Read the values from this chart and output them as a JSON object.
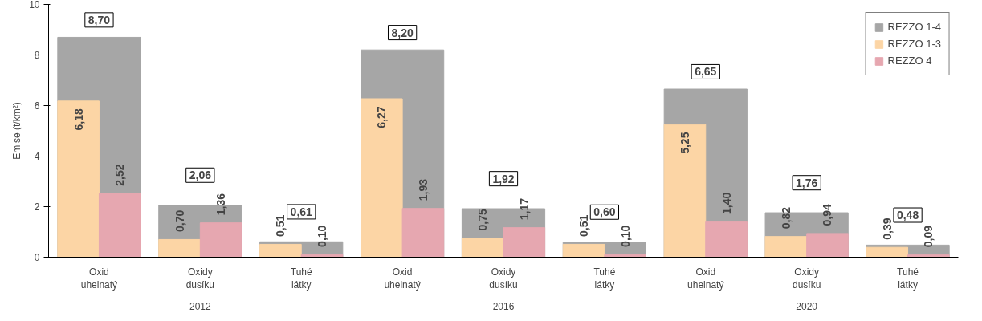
{
  "chart_data": {
    "type": "bar",
    "ylabel": "Emise (t/km²)",
    "categories": [
      "Oxid\nuhelnatý",
      "Oxidy\ndusíku",
      "Tuhé\nlátky",
      "Oxid\nuhelnatý",
      "Oxidy\ndusíku",
      "Tuhé\nlátky",
      "Oxid\nuhelnatý",
      "Oxidy\ndusíku",
      "Tuhé\nlátky"
    ],
    "series": [
      {
        "name": "REZZO 1-4",
        "color": "#a6a6a6",
        "values": [
          8.7,
          2.06,
          0.61,
          8.2,
          1.92,
          0.6,
          6.65,
          1.76,
          0.48
        ],
        "value_labels": [
          "8,70",
          "2,06",
          "0,61",
          "8,20",
          "1,92",
          "0,60",
          "6,65",
          "1,76",
          "0,48"
        ]
      },
      {
        "name": "REZZO 1-3",
        "color": "#fcd5a5",
        "values": [
          6.18,
          0.7,
          0.51,
          6.27,
          0.75,
          0.51,
          5.25,
          0.82,
          0.39
        ],
        "value_labels": [
          "6,18",
          "0,70",
          "0,51",
          "6,27",
          "0,75",
          "0,51",
          "5,25",
          "0,82",
          "0,39"
        ]
      },
      {
        "name": "REZZO 4",
        "color": "#e6a7b0",
        "values": [
          2.52,
          1.36,
          0.1,
          1.93,
          1.17,
          0.1,
          1.4,
          0.94,
          0.09
        ],
        "value_labels": [
          "2,52",
          "1,36",
          "0,10",
          "1,93",
          "1,17",
          "0,10",
          "1,40",
          "0,94",
          "0,09"
        ]
      }
    ],
    "annotations": [
      "2012",
      "2016",
      "2020"
    ],
    "ylim": [
      0,
      10
    ],
    "yticks": [
      0,
      2,
      4,
      6,
      8,
      10
    ],
    "grid": false,
    "legend": "top right"
  }
}
